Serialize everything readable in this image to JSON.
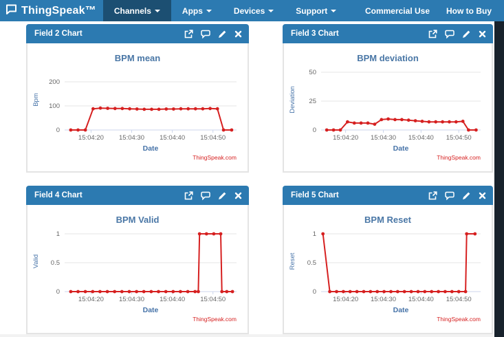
{
  "navbar": {
    "brand": "ThingSpeak™",
    "items": [
      {
        "label": "Channels",
        "active": true
      },
      {
        "label": "Apps",
        "active": false
      },
      {
        "label": "Devices",
        "active": false
      },
      {
        "label": "Support",
        "active": false
      }
    ],
    "right_items": [
      {
        "label": "Commercial Use"
      },
      {
        "label": "How to Buy"
      }
    ]
  },
  "panels": [
    {
      "title": "Field 2 Chart"
    },
    {
      "title": "Field 3 Chart"
    },
    {
      "title": "Field 4 Chart"
    },
    {
      "title": "Field 5 Chart"
    }
  ],
  "colors": {
    "navbar": "#2c7ab1",
    "navbar_active": "#1c4f72",
    "line_red": "#d62020",
    "credit_red": "#d62020",
    "title_blue": "#4a77a6",
    "axis_label_blue": "#4673a8",
    "tick_gray": "#666666",
    "grid": "#e6e6e6",
    "axis_line": "#ccd6eb"
  },
  "chart_data": [
    {
      "type": "line",
      "title": "BPM mean",
      "xlabel": "Date",
      "ylabel": "Bpm",
      "credit": "ThingSpeak.com",
      "legend": "none",
      "grid": "horizontal",
      "xlim": [
        13.5,
        55.8
      ],
      "xticks": [
        {
          "v": 20,
          "label": "15:04:20"
        },
        {
          "v": 30,
          "label": "15:04:30"
        },
        {
          "v": 40,
          "label": "15:04:40"
        },
        {
          "v": 50,
          "label": "15:04:50"
        }
      ],
      "yticks": [
        0,
        100,
        200
      ],
      "ylim": [
        0,
        200
      ],
      "x": [
        15,
        16.8,
        18.6,
        20.5,
        22.3,
        24.1,
        25.9,
        27.7,
        29.5,
        31.3,
        33.1,
        34.9,
        36.7,
        38.5,
        40.3,
        42.1,
        43.9,
        45.7,
        47.5,
        49.3,
        51.1,
        52.6,
        54.6
      ],
      "y": [
        0,
        0,
        0,
        88,
        91,
        90,
        89,
        89,
        88,
        87,
        86,
        86,
        86,
        87,
        87,
        88,
        88,
        88,
        88,
        89,
        88,
        0,
        0
      ]
    },
    {
      "type": "line",
      "title": "BPM deviation",
      "xlabel": "Date",
      "ylabel": "Deviation",
      "credit": "ThingSpeak.com",
      "legend": "none",
      "grid": "horizontal",
      "xlim": [
        13.5,
        55.8
      ],
      "xticks": [
        {
          "v": 20,
          "label": "15:04:20"
        },
        {
          "v": 30,
          "label": "15:04:30"
        },
        {
          "v": 40,
          "label": "15:04:40"
        },
        {
          "v": 50,
          "label": "15:04:50"
        }
      ],
      "yticks": [
        0,
        25,
        50
      ],
      "ylim": [
        0,
        50
      ],
      "x": [
        15,
        16.8,
        18.6,
        20.5,
        22.3,
        24.1,
        25.9,
        27.7,
        29.5,
        31.3,
        33.1,
        34.9,
        36.7,
        38.5,
        40.3,
        42.1,
        43.9,
        45.7,
        47.5,
        49.3,
        51.1,
        52.6,
        54.6
      ],
      "y": [
        0,
        0,
        0,
        7,
        6,
        6,
        6,
        5,
        9,
        9.5,
        9,
        9,
        8.5,
        8,
        7.5,
        7,
        7,
        7,
        7,
        7,
        7.5,
        0,
        0
      ]
    },
    {
      "type": "line",
      "title": "BPM Valid",
      "xlabel": "Date",
      "ylabel": "Valid",
      "credit": "ThingSpeak.com",
      "legend": "none",
      "grid": "horizontal",
      "xlim": [
        13.5,
        55.8
      ],
      "xticks": [
        {
          "v": 20,
          "label": "15:04:20"
        },
        {
          "v": 30,
          "label": "15:04:30"
        },
        {
          "v": 40,
          "label": "15:04:40"
        },
        {
          "v": 50,
          "label": "15:04:50"
        }
      ],
      "yticks": [
        0,
        0.5,
        1
      ],
      "ylim": [
        0,
        1
      ],
      "x": [
        15,
        16.8,
        18.6,
        20.4,
        22.2,
        24,
        25.8,
        27.6,
        29.4,
        31.2,
        33,
        34.8,
        36.6,
        38.4,
        40.2,
        42,
        43.8,
        45.6,
        46.4,
        46.7,
        48.4,
        50.2,
        51.9,
        52.2,
        53.4,
        54.8
      ],
      "y": [
        0,
        0,
        0,
        0,
        0,
        0,
        0,
        0,
        0,
        0,
        0,
        0,
        0,
        0,
        0,
        0,
        0,
        0,
        0,
        1,
        1,
        1,
        1,
        0,
        0,
        0
      ]
    },
    {
      "type": "line",
      "title": "BPM Reset",
      "xlabel": "Date",
      "ylabel": "Reset",
      "credit": "ThingSpeak.com",
      "legend": "none",
      "grid": "horizontal",
      "xlim": [
        13.5,
        55.8
      ],
      "xticks": [
        {
          "v": 20,
          "label": "15:04:20"
        },
        {
          "v": 30,
          "label": "15:04:30"
        },
        {
          "v": 40,
          "label": "15:04:40"
        },
        {
          "v": 50,
          "label": "15:04:50"
        }
      ],
      "yticks": [
        0,
        0.5,
        1
      ],
      "ylim": [
        0,
        1
      ],
      "x": [
        14,
        15.8,
        17.6,
        19.4,
        21.2,
        23,
        24.8,
        26.6,
        28.4,
        30.2,
        32,
        33.8,
        35.6,
        37.4,
        39.2,
        41,
        42.8,
        44.6,
        46.4,
        48.2,
        50,
        51.8,
        52.1,
        54.3
      ],
      "y": [
        1,
        0,
        0,
        0,
        0,
        0,
        0,
        0,
        0,
        0,
        0,
        0,
        0,
        0,
        0,
        0,
        0,
        0,
        0,
        0,
        0,
        0,
        1,
        1
      ]
    }
  ]
}
